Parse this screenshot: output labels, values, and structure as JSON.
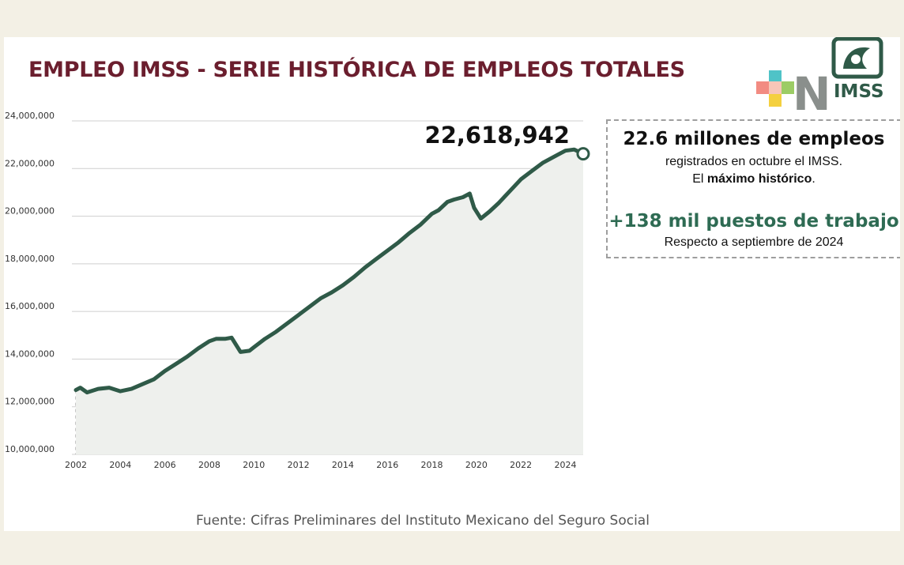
{
  "title": "EMPLEO IMSS - SERIE HISTÓRICA DE EMPLEOS TOTALES",
  "logo": {
    "letters": "IMSS",
    "big_letter": "N"
  },
  "callout": {
    "headline": "22.6 millones de empleos",
    "line1": "registrados en octubre el IMSS.",
    "line2_prefix": "El ",
    "line2_bold": "máximo histórico",
    "line2_suffix": ".",
    "headline2": "+138 mil puestos de trabajo",
    "line3": "Respecto a septiembre de 2024"
  },
  "source": "Fuente: Cifras Preliminares del Instituto Mexicano del Seguro Social",
  "colors": {
    "line": "#2f5a48",
    "area": "#eef0ed",
    "title": "#6b1e2e",
    "accent_green": "#2e6b53"
  },
  "chart_data": {
    "type": "area",
    "title": "",
    "xlabel": "",
    "ylabel": "",
    "xlim": [
      2002,
      2024.8
    ],
    "ylim": [
      10000000,
      24000000
    ],
    "yticks": [
      "10,000,000",
      "12,000,000",
      "14,000,000",
      "16,000,000",
      "18,000,000",
      "20,000,000",
      "22,000,000",
      "24,000,000"
    ],
    "xticks": [
      "2002",
      "2004",
      "2006",
      "2008",
      "2010",
      "2012",
      "2014",
      "2016",
      "2018",
      "2020",
      "2022",
      "2024"
    ],
    "grid": "horizontal",
    "annotation": "22,618,942",
    "series": [
      {
        "x": [
          2002.0,
          2002.2,
          2002.5,
          2003.0,
          2003.5,
          2004.0,
          2004.5,
          2005.0,
          2005.5,
          2006.0,
          2006.5,
          2007.0,
          2007.5,
          2008.0,
          2008.3,
          2008.7,
          2009.0,
          2009.4,
          2009.8,
          2010.0,
          2010.5,
          2011.0,
          2011.5,
          2012.0,
          2012.5,
          2013.0,
          2013.5,
          2014.0,
          2014.5,
          2015.0,
          2015.5,
          2016.0,
          2016.5,
          2017.0,
          2017.5,
          2018.0,
          2018.3,
          2018.7,
          2019.0,
          2019.4,
          2019.7,
          2019.9,
          2020.2,
          2020.6,
          2021.0,
          2021.5,
          2022.0,
          2022.5,
          2023.0,
          2023.5,
          2023.8,
          2024.0,
          2024.4,
          2024.8
        ],
        "values": [
          12700000,
          12800000,
          12600000,
          12750000,
          12800000,
          12650000,
          12750000,
          12950000,
          13150000,
          13500000,
          13800000,
          14100000,
          14450000,
          14750000,
          14850000,
          14850000,
          14900000,
          14300000,
          14350000,
          14500000,
          14850000,
          15150000,
          15500000,
          15850000,
          16200000,
          16550000,
          16800000,
          17100000,
          17450000,
          17850000,
          18200000,
          18550000,
          18900000,
          19300000,
          19650000,
          20100000,
          20250000,
          20600000,
          20700000,
          20800000,
          20950000,
          20350000,
          19900000,
          20200000,
          20550000,
          21050000,
          21550000,
          21900000,
          22250000,
          22500000,
          22650000,
          22750000,
          22800000,
          22618942
        ]
      }
    ]
  }
}
